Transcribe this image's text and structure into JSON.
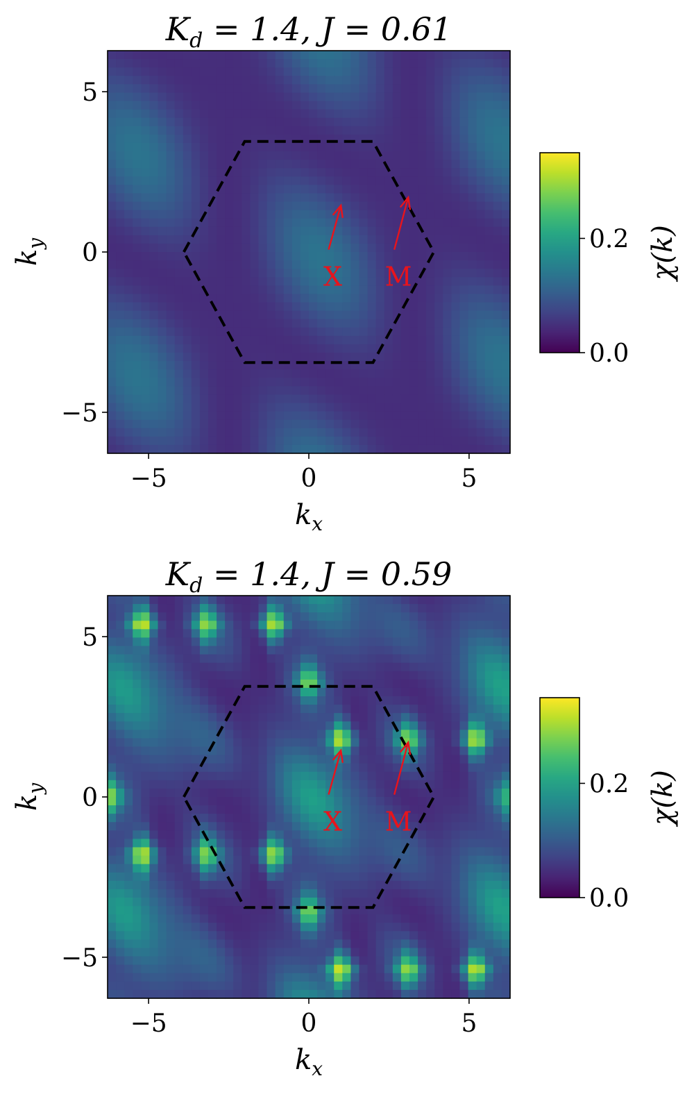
{
  "chart_data": [
    {
      "type": "heatmap",
      "title": "K_d = 1.4, J = 0.61",
      "title_parts": {
        "k": "K",
        "sub": "d",
        "rest": " = 1.4, J = 0.61"
      },
      "xlabel": "k_x",
      "ylabel": "k_y",
      "xlabel_parts": {
        "main": "k",
        "sub": "x"
      },
      "ylabel_parts": {
        "main": "k",
        "sub": "y"
      },
      "xlim": [
        -6.28,
        6.28
      ],
      "ylim": [
        -6.28,
        6.28
      ],
      "xticks": [
        {
          "value": -5,
          "label": "−5"
        },
        {
          "value": 0,
          "label": "0"
        },
        {
          "value": 5,
          "label": "5"
        }
      ],
      "yticks": [
        {
          "value": -5,
          "label": "−5"
        },
        {
          "value": 0,
          "label": "0"
        },
        {
          "value": 5,
          "label": "5"
        }
      ],
      "colorbar": {
        "label": "χ(k)",
        "range": [
          0.0,
          0.35
        ],
        "ticks": [
          {
            "value": 0.0,
            "label": "0.0"
          },
          {
            "value": 0.2,
            "label": "0.2"
          }
        ],
        "colormap": "viridis"
      },
      "brillouin_zone": {
        "style": "dashed",
        "color": "#000000",
        "vertices": [
          [
            -3.9,
            0
          ],
          [
            -2.0,
            3.45
          ],
          [
            2.0,
            3.45
          ],
          [
            3.9,
            0
          ],
          [
            2.0,
            -3.45
          ],
          [
            -2.0,
            -3.45
          ]
        ]
      },
      "annotations": [
        {
          "text": "X",
          "point": [
            1.0,
            1.45
          ],
          "text_at": [
            0.4,
            -0.75
          ],
          "color": "#e8141c"
        },
        {
          "text": "M",
          "point": [
            3.1,
            1.7
          ],
          "text_at": [
            2.45,
            -0.75
          ],
          "color": "#e8141c"
        }
      ],
      "field": {
        "mode": "diffuse",
        "base": 0.045,
        "ridge_amp": 0.09,
        "peak_amp": 0.0,
        "grid": 48
      }
    },
    {
      "type": "heatmap",
      "title": "K_d = 1.4, J = 0.59",
      "title_parts": {
        "k": "K",
        "sub": "d",
        "rest": " = 1.4, J = 0.59"
      },
      "xlabel": "k_x",
      "ylabel": "k_y",
      "xlabel_parts": {
        "main": "k",
        "sub": "x"
      },
      "ylabel_parts": {
        "main": "k",
        "sub": "y"
      },
      "xlim": [
        -6.28,
        6.28
      ],
      "ylim": [
        -6.28,
        6.28
      ],
      "xticks": [
        {
          "value": -5,
          "label": "−5"
        },
        {
          "value": 0,
          "label": "0"
        },
        {
          "value": 5,
          "label": "5"
        }
      ],
      "yticks": [
        {
          "value": -5,
          "label": "−5"
        },
        {
          "value": 0,
          "label": "0"
        },
        {
          "value": 5,
          "label": "5"
        }
      ],
      "colorbar": {
        "label": "χ(k)",
        "range": [
          0.0,
          0.35
        ],
        "ticks": [
          {
            "value": 0.0,
            "label": "0.0"
          },
          {
            "value": 0.2,
            "label": "0.2"
          }
        ],
        "colormap": "viridis"
      },
      "brillouin_zone": {
        "style": "dashed",
        "color": "#000000",
        "vertices": [
          [
            -3.9,
            0
          ],
          [
            -2.0,
            3.45
          ],
          [
            2.0,
            3.45
          ],
          [
            3.9,
            0
          ],
          [
            2.0,
            -3.45
          ],
          [
            -2.0,
            -3.45
          ]
        ]
      },
      "annotations": [
        {
          "text": "X",
          "point": [
            1.0,
            1.45
          ],
          "text_at": [
            0.4,
            -0.75
          ],
          "color": "#e8141c"
        },
        {
          "text": "M",
          "point": [
            3.1,
            1.7
          ],
          "text_at": [
            2.45,
            -0.75
          ],
          "color": "#e8141c"
        }
      ],
      "field": {
        "mode": "peaked",
        "base": 0.04,
        "ridge_amp": 0.1,
        "peak_amp": 0.3,
        "grid": 48
      },
      "bright_peaks": [
        {
          "x": -5.2,
          "y": 5.4,
          "value": 0.35
        },
        {
          "x": -3.2,
          "y": 5.4,
          "value": 0.28
        },
        {
          "x": -1.1,
          "y": 5.4,
          "value": 0.35
        },
        {
          "x": 0.0,
          "y": 3.6,
          "value": 0.27
        },
        {
          "x": 1.0,
          "y": 1.8,
          "value": 0.35
        },
        {
          "x": 3.1,
          "y": 1.8,
          "value": 0.28
        },
        {
          "x": 5.2,
          "y": 1.8,
          "value": 0.35
        },
        {
          "x": -6.2,
          "y": 0.0,
          "value": 0.27
        },
        {
          "x": 6.2,
          "y": 0.0,
          "value": 0.2
        },
        {
          "x": -5.2,
          "y": -1.8,
          "value": 0.35
        },
        {
          "x": -3.2,
          "y": -1.8,
          "value": 0.28
        },
        {
          "x": -1.1,
          "y": -1.8,
          "value": 0.35
        },
        {
          "x": 0.0,
          "y": -3.6,
          "value": 0.27
        },
        {
          "x": 1.0,
          "y": -5.4,
          "value": 0.35
        },
        {
          "x": 3.1,
          "y": -5.4,
          "value": 0.28
        },
        {
          "x": 5.2,
          "y": -5.4,
          "value": 0.35
        }
      ]
    }
  ]
}
